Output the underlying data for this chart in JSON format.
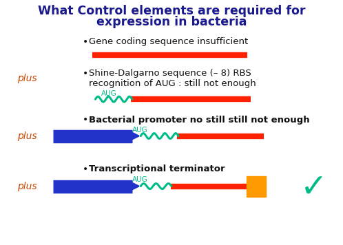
{
  "title_line1": "What Control elements are required for",
  "title_line2": "expression in bacteria",
  "title_color": "#1a1a8c",
  "title_fontsize": 12.5,
  "bg_color": "#ffffff",
  "plus_color": "#cc4400",
  "bullet_color": "#111111",
  "red_color": "#ff2200",
  "green_color": "#00bb88",
  "blue_color": "#2233cc",
  "orange_color": "#ff9900",
  "checkmark_color": "#00bb88",
  "row1_label": "Gene coding sequence insufficient",
  "row2_label_a": "Shine-Dalgarno sequence (– 8) RBS",
  "row2_label_b": "recognition of AUG : still not enough",
  "row3_label": "Bacterial promoter no still still not enough",
  "row4_label": "Transcriptional terminator",
  "aug_color": "#00bb88"
}
